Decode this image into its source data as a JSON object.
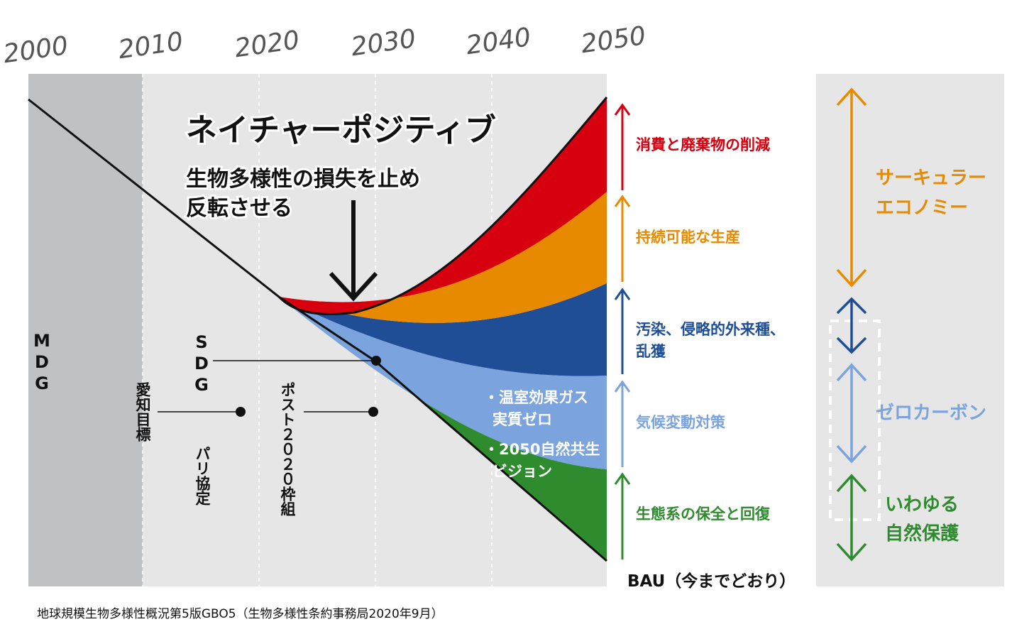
{
  "years": [
    "2000",
    "2010",
    "2020",
    "2030",
    "2040",
    "2050"
  ],
  "headline": {
    "title": "ネイチャーポジティブ",
    "line1": "生物多様性の損失を止め",
    "line2": "反転させる"
  },
  "vertical_labels": {
    "mdg": "MDG",
    "sdg": "SDG",
    "aichi": "愛知目標",
    "paris": "パリ協定",
    "post2020": "ポスト２０２０枠組"
  },
  "inner_labels": {
    "ghg1": "・温室効果ガス",
    "ghg2": "実質ゼロ",
    "vision1": "・2050自然共生",
    "vision2": "ビジョン"
  },
  "bands": [
    {
      "name": "消費と廃棄物の削減",
      "color": "#d7000f"
    },
    {
      "name": "持続可能な生産",
      "color": "#e88a00"
    },
    {
      "name_line1": "汚染、侵略的外来種、",
      "name_line2": "乱獲",
      "color": "#1f4e96"
    },
    {
      "name": "気候変動対策",
      "color": "#7ba3de"
    },
    {
      "name": "生態系の保全と回復",
      "color": "#2e8b2e"
    }
  ],
  "bau_label": "BAU（今までどおり）",
  "categories": {
    "circular_line1": "サーキュラー",
    "circular_line2": "エコノミー",
    "zerocarbon": "ゼロカーボン",
    "conservation_line1": "いわゆる",
    "conservation_line2": "自然保護"
  },
  "source": "地球規模生物多様性概況第5版GBO5（生物多様性条約事務局2020年9月）",
  "colors": {
    "red": "#d7000f",
    "orange": "#e88a00",
    "navy": "#1f4e96",
    "lightblue": "#7ba3de",
    "green": "#2e8b2e",
    "panel": "#e6e6e6",
    "mdg_panel": "#bfc1c3"
  }
}
